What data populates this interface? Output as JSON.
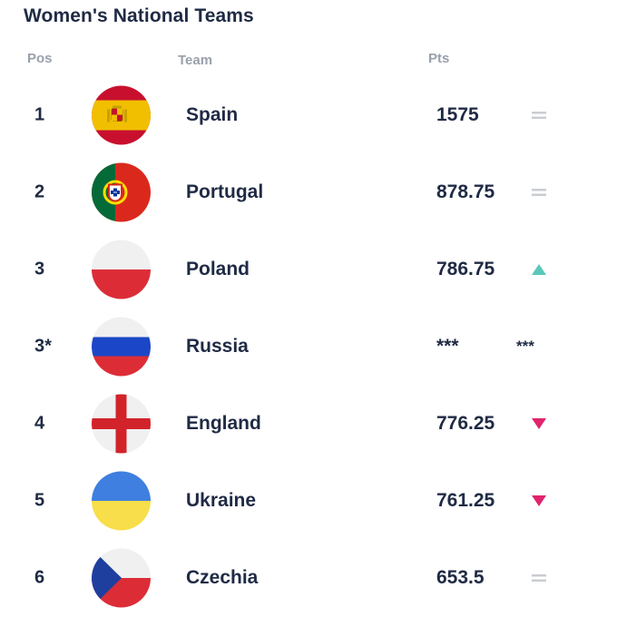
{
  "title": "Women's National Teams",
  "columns": {
    "pos": "Pos",
    "team": "Team",
    "pts": "Pts"
  },
  "colors": {
    "text": "#1f2a44",
    "muted": "#9aa0ab",
    "up": "#5ac8b8",
    "down": "#e0246d",
    "same": "#c9ccd2"
  },
  "rows": [
    {
      "pos": "1",
      "team": "Spain",
      "pts": "1575",
      "trend": "same",
      "flag_icon": "spain-flag-icon"
    },
    {
      "pos": "2",
      "team": "Portugal",
      "pts": "878.75",
      "trend": "same",
      "flag_icon": "portugal-flag-icon"
    },
    {
      "pos": "3",
      "team": "Poland",
      "pts": "786.75",
      "trend": "up",
      "flag_icon": "poland-flag-icon"
    },
    {
      "pos": "3*",
      "team": "Russia",
      "pts": "***",
      "trend": "***",
      "flag_icon": "russia-flag-icon"
    },
    {
      "pos": "4",
      "team": "England",
      "pts": "776.25",
      "trend": "down",
      "flag_icon": "england-flag-icon"
    },
    {
      "pos": "5",
      "team": "Ukraine",
      "pts": "761.25",
      "trend": "down",
      "flag_icon": "ukraine-flag-icon"
    },
    {
      "pos": "6",
      "team": "Czechia",
      "pts": "653.5",
      "trend": "same",
      "flag_icon": "czechia-flag-icon"
    }
  ]
}
